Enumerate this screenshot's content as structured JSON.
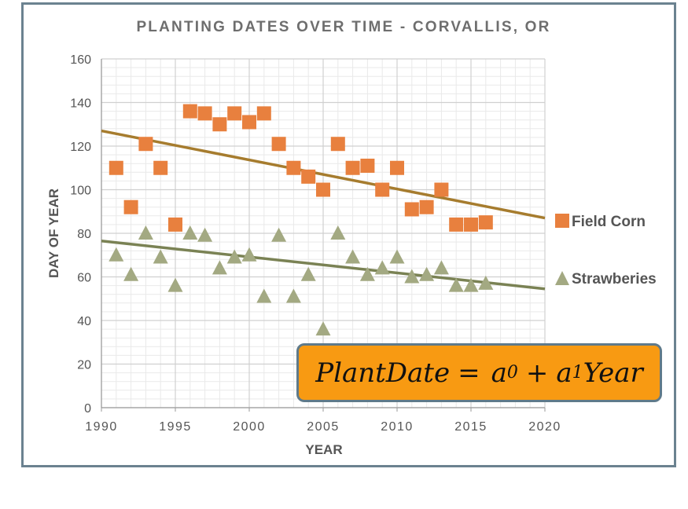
{
  "chart_data": {
    "type": "scatter",
    "title": "PLANTING DATES OVER TIME - CORVALLIS, OR",
    "xlabel": "YEAR",
    "ylabel": "DAY OF YEAR",
    "xlim": [
      1990,
      2020
    ],
    "ylim": [
      0,
      160
    ],
    "x_ticks": [
      "1990",
      "1995",
      "2000",
      "2005",
      "2010",
      "2015",
      "2020"
    ],
    "y_ticks": [
      "0",
      "20",
      "40",
      "60",
      "80",
      "100",
      "120",
      "140",
      "160"
    ],
    "grid": true,
    "legend_position": "right",
    "series": [
      {
        "name": "Field Corn",
        "marker": "square",
        "color": "#e8803e",
        "x": [
          1991,
          1992,
          1993,
          1994,
          1995,
          1996,
          1997,
          1998,
          1999,
          2000,
          2001,
          2002,
          2003,
          2004,
          2005,
          2006,
          2007,
          2008,
          2009,
          2010,
          2011,
          2012,
          2013,
          2014,
          2015,
          2016
        ],
        "y": [
          110,
          92,
          121,
          110,
          84,
          136,
          135,
          130,
          135,
          131,
          135,
          121,
          110,
          106,
          100,
          121,
          110,
          111,
          100,
          110,
          91,
          92,
          100,
          84,
          84,
          85
        ],
        "trendline": {
          "color": "#a67c2e",
          "x": [
            1990,
            2020
          ],
          "y": [
            127,
            87
          ]
        }
      },
      {
        "name": "Strawberies",
        "marker": "triangle",
        "color": "#a3a982",
        "x": [
          1991,
          1992,
          1993,
          1994,
          1995,
          1996,
          1997,
          1998,
          1999,
          2000,
          2001,
          2002,
          2003,
          2004,
          2005,
          2006,
          2007,
          2008,
          2009,
          2010,
          2011,
          2012,
          2013,
          2014,
          2015,
          2016
        ],
        "y": [
          70,
          61,
          80,
          69,
          56,
          80,
          79,
          64,
          69,
          70,
          51,
          79,
          51,
          61,
          36,
          80,
          69,
          61,
          64,
          69,
          60,
          61,
          64,
          56,
          56,
          57
        ],
        "trendline": {
          "color": "#7a8254",
          "x": [
            1990,
            2020
          ],
          "y": [
            76.5,
            54.5
          ]
        }
      }
    ],
    "annotation": {
      "lhs": "PlantDate",
      "eq": "=",
      "a": "a",
      "sub0": "0",
      "plus": "+",
      "sub1": "1",
      "var": "Year"
    }
  }
}
